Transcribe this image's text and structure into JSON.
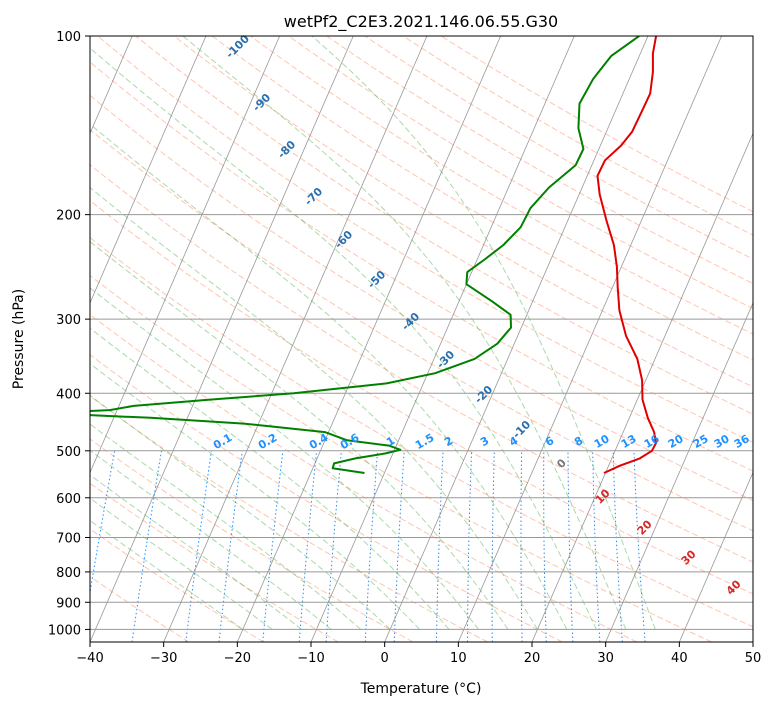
{
  "chart_data": {
    "type": "line",
    "title": "wetPf2_C2E3.2021.146.06.55.G30",
    "xlabel": "Temperature (°C)",
    "ylabel": "Pressure (hPa)",
    "xlim": [
      -40,
      50
    ],
    "ylim": [
      1050,
      100
    ],
    "y_scale": "log",
    "x_ticks": [
      -40,
      -30,
      -20,
      -10,
      0,
      10,
      20,
      30,
      40,
      50
    ],
    "x_tick_labels": [
      "−40",
      "−30",
      "−20",
      "−10",
      "0",
      "10",
      "20",
      "30",
      "40",
      "50"
    ],
    "y_ticks": [
      100,
      200,
      300,
      400,
      500,
      600,
      700,
      800,
      900,
      1000
    ],
    "y_tick_labels": [
      "100",
      "200",
      "300",
      "400",
      "500",
      "600",
      "700",
      "800",
      "900",
      "1000"
    ],
    "grid": true,
    "series": [
      {
        "color": "#e00000",
        "points": [
          {
            "p": 545,
            "t": 19.8
          },
          {
            "p": 530,
            "t": 21.5
          },
          {
            "p": 515,
            "t": 23.8
          },
          {
            "p": 500,
            "t": 25.0
          },
          {
            "p": 485,
            "t": 25.1
          },
          {
            "p": 465,
            "t": 24.2
          },
          {
            "p": 440,
            "t": 22.5
          },
          {
            "p": 410,
            "t": 20.7
          },
          {
            "p": 380,
            "t": 19.5
          },
          {
            "p": 350,
            "t": 17.6
          },
          {
            "p": 320,
            "t": 14.7
          },
          {
            "p": 290,
            "t": 12.3
          },
          {
            "p": 265,
            "t": 10.7
          },
          {
            "p": 245,
            "t": 9.4
          },
          {
            "p": 225,
            "t": 7.7
          },
          {
            "p": 205,
            "t": 5.3
          },
          {
            "p": 185,
            "t": 2.8
          },
          {
            "p": 172,
            "t": 1.4
          },
          {
            "p": 162,
            "t": 1.5
          },
          {
            "p": 153,
            "t": 2.8
          },
          {
            "p": 145,
            "t": 3.5
          },
          {
            "p": 135,
            "t": 3.6
          },
          {
            "p": 125,
            "t": 3.7
          },
          {
            "p": 115,
            "t": 2.8
          },
          {
            "p": 107,
            "t": 1.7
          },
          {
            "p": 100,
            "t": 1.1
          }
        ]
      },
      {
        "color": "#008000",
        "points": [
          {
            "p": 545,
            "t": -12.7
          },
          {
            "p": 535,
            "t": -17.3
          },
          {
            "p": 525,
            "t": -17.4
          },
          {
            "p": 515,
            "t": -14.8
          },
          {
            "p": 505,
            "t": -11.0
          },
          {
            "p": 498,
            "t": -9.2
          },
          {
            "p": 490,
            "t": -11.0
          },
          {
            "p": 480,
            "t": -17.0
          },
          {
            "p": 465,
            "t": -20.5
          },
          {
            "p": 450,
            "t": -32.0
          },
          {
            "p": 440,
            "t": -45.0
          },
          {
            "p": 432,
            "t": -60.0
          },
          {
            "p": 427,
            "t": -51.0
          },
          {
            "p": 420,
            "t": -48.0
          },
          {
            "p": 410,
            "t": -38.0
          },
          {
            "p": 400,
            "t": -27.0
          },
          {
            "p": 385,
            "t": -15.0
          },
          {
            "p": 370,
            "t": -9.0
          },
          {
            "p": 350,
            "t": -4.5
          },
          {
            "p": 330,
            "t": -2.3
          },
          {
            "p": 310,
            "t": -1.4
          },
          {
            "p": 295,
            "t": -2.2
          },
          {
            "p": 280,
            "t": -5.5
          },
          {
            "p": 262,
            "t": -10.0
          },
          {
            "p": 250,
            "t": -10.6
          },
          {
            "p": 238,
            "t": -9.0
          },
          {
            "p": 225,
            "t": -7.3
          },
          {
            "p": 210,
            "t": -6.0
          },
          {
            "p": 195,
            "t": -5.8
          },
          {
            "p": 180,
            "t": -4.5
          },
          {
            "p": 165,
            "t": -2.2
          },
          {
            "p": 155,
            "t": -2.1
          },
          {
            "p": 143,
            "t": -4.0
          },
          {
            "p": 130,
            "t": -5.3
          },
          {
            "p": 118,
            "t": -4.9
          },
          {
            "p": 108,
            "t": -3.8
          },
          {
            "p": 100,
            "t": -1.2
          }
        ]
      }
    ],
    "isotherm_labels": [
      "-100",
      "-90",
      "-80",
      "-70",
      "-60",
      "-50",
      "-40",
      "-30",
      "-20",
      "-10",
      "0",
      "10",
      "20",
      "30",
      "40"
    ],
    "mixing_ratio_labels": [
      "0.1",
      "0.2",
      "0.4",
      "0.6",
      "1",
      "1.5",
      "2",
      "3",
      "4",
      "6",
      "8",
      "10",
      "13",
      "16",
      "20",
      "25",
      "30",
      "36"
    ],
    "colors": {
      "temperature": "#e00000",
      "dewpoint": "#008000",
      "isotherm_cold": "#2a6fb0",
      "isotherm_warm": "#d62728",
      "isotherm_zero": "#777777",
      "mixing_ratio": "#1e90ff",
      "dry_adiabat": "#ff7f50",
      "moist_adiabat": "#2ca02c",
      "grid": "#999999"
    }
  }
}
